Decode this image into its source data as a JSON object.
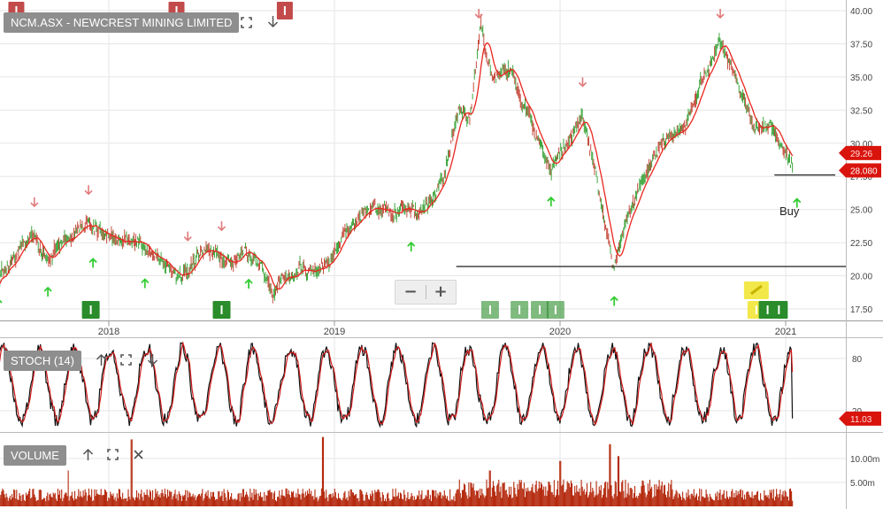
{
  "colors": {
    "candle_up": "#2a9d2a",
    "candle_down": "#c0392b",
    "ma_line": "#e8261e",
    "stoch_k": "#111111",
    "stoch_d": "#d11c1c",
    "volume_bar": "#b52a0e",
    "buy_arrow": "#33cc33",
    "sell_arrow": "#e07a7a",
    "marker_green": "#2a8c2a",
    "marker_red": "#c24a4a",
    "marker_yellow": "#f2e84a",
    "price_tag": "#d9140d",
    "grid": "#e6e6e6",
    "axis_text": "#444444"
  },
  "main_pane": {
    "title": "NCM.ASX - NEWCREST MINING LIMITED",
    "tools": {
      "fullscreen_icon": "fullscreen-icon",
      "down_icon": "arrow-down-icon"
    },
    "zoom": {
      "minus": "−",
      "plus": "+"
    },
    "buy_label": "Buy"
  },
  "stoch_pane": {
    "title": "STOCH (14)",
    "tools": {
      "up_icon": "arrow-up-icon",
      "fullscreen_icon": "fullscreen-icon",
      "down_icon": "arrow-down-icon"
    }
  },
  "volume_pane": {
    "title": "VOLUME",
    "tools": {
      "up_icon": "arrow-up-icon",
      "fullscreen_icon": "fullscreen-icon",
      "close_icon": "close-icon"
    }
  },
  "price_tags": {
    "ma": "29.26",
    "close": "28.080",
    "stoch": "11.03"
  },
  "chart_data": [
    {
      "type": "candlestick",
      "title": "NCM.ASX - NEWCREST MINING LIMITED",
      "x_tick_labels": [
        "2018",
        "2019",
        "2020",
        "2021"
      ],
      "x_ticks": [
        2018.0,
        2019.0,
        2020.0,
        2021.0
      ],
      "xlim": [
        2017.5,
        2021.3
      ],
      "ylim": [
        16.5,
        40.5
      ],
      "y_tick_labels": [
        "17.50",
        "20.00",
        "22.50",
        "25.00",
        "27.50",
        "30.00",
        "32.50",
        "35.00",
        "37.50",
        "40.00"
      ],
      "y_ticks": [
        17.5,
        20,
        22.5,
        25,
        27.5,
        30,
        32.5,
        35,
        37.5,
        40
      ],
      "grid": true,
      "price_path": [
        [
          2017.5,
          19.5
        ],
        [
          2017.66,
          23.2
        ],
        [
          2017.73,
          21.4
        ],
        [
          2017.9,
          24.0
        ],
        [
          2018.0,
          22.6
        ],
        [
          2018.08,
          23.1
        ],
        [
          2018.2,
          21.5
        ],
        [
          2018.32,
          19.8
        ],
        [
          2018.42,
          21.7
        ],
        [
          2018.52,
          21.0
        ],
        [
          2018.62,
          22.0
        ],
        [
          2018.73,
          18.8
        ],
        [
          2018.85,
          20.5
        ],
        [
          2018.98,
          20.8
        ],
        [
          2019.05,
          23.5
        ],
        [
          2019.18,
          25.3
        ],
        [
          2019.3,
          25.0
        ],
        [
          2019.38,
          24.6
        ],
        [
          2019.48,
          27.2
        ],
        [
          2019.55,
          32.5
        ],
        [
          2019.6,
          32.0
        ],
        [
          2019.65,
          38.9
        ],
        [
          2019.7,
          35.0
        ],
        [
          2019.78,
          35.5
        ],
        [
          2019.86,
          32.0
        ],
        [
          2019.96,
          28.2
        ],
        [
          2020.05,
          30.2
        ],
        [
          2020.1,
          32.0
        ],
        [
          2020.15,
          28.5
        ],
        [
          2020.22,
          22.0
        ],
        [
          2020.24,
          20.7
        ],
        [
          2020.3,
          24.5
        ],
        [
          2020.38,
          28.0
        ],
        [
          2020.45,
          30.0
        ],
        [
          2020.55,
          31.0
        ],
        [
          2020.65,
          35.5
        ],
        [
          2020.71,
          37.8
        ],
        [
          2020.78,
          35.0
        ],
        [
          2020.86,
          31.0
        ],
        [
          2020.93,
          31.5
        ],
        [
          2020.97,
          30.0
        ],
        [
          2021.0,
          29.3
        ],
        [
          2021.03,
          28.1
        ]
      ],
      "moving_average_last": 29.26,
      "last_close": 28.08,
      "horizontal_lines": [
        {
          "y": 20.7,
          "x_from": 2019.54
        },
        {
          "y": 27.6,
          "x_from": 2020.95,
          "x_to": 2021.22
        }
      ],
      "annotations": [
        {
          "text": "Buy",
          "x": 2021.03,
          "y": 25.0
        }
      ],
      "buy_signals_x": [
        2017.51,
        2017.73,
        2017.93,
        2018.16,
        2018.62,
        2019.34,
        2019.96,
        2020.24,
        2021.05
      ],
      "sell_signals_x": [
        2017.67,
        2017.91,
        2018.35,
        2018.5,
        2019.64,
        2020.1,
        2020.71
      ],
      "top_markers": [
        {
          "x": 2017.59,
          "color": "red"
        },
        {
          "x": 2018.3,
          "color": "red"
        },
        {
          "x": 2018.78,
          "color": "red"
        }
      ],
      "bottom_markers": [
        {
          "x": 2017.92,
          "color": "green"
        },
        {
          "x": 2018.5,
          "color": "green"
        },
        {
          "x": 2019.69,
          "color": "green"
        },
        {
          "x": 2019.82,
          "color": "green"
        },
        {
          "x": 2019.91,
          "color": "green"
        },
        {
          "x": 2019.98,
          "color": "green"
        },
        {
          "x": 2020.87,
          "color": "yellow"
        },
        {
          "x": 2020.92,
          "color": "green"
        },
        {
          "x": 2020.97,
          "color": "green"
        }
      ]
    },
    {
      "type": "line",
      "title": "STOCH (14)",
      "ylim": [
        0,
        100
      ],
      "y_tick_labels": [
        "20",
        "80"
      ],
      "y_ticks": [
        20,
        80
      ],
      "last_value": 11.03,
      "series": [
        {
          "name": "%K"
        },
        {
          "name": "%D"
        }
      ]
    },
    {
      "type": "bar",
      "title": "VOLUME",
      "y_tick_labels": [
        "5.00m",
        "10.00m"
      ],
      "y_ticks": [
        5,
        10
      ],
      "units": "m",
      "typical": 3.0,
      "spikes": [
        [
          2017.82,
          7.5
        ],
        [
          2018.1,
          14.0
        ],
        [
          2018.95,
          14.5
        ],
        [
          2019.69,
          7.5
        ],
        [
          2020.0,
          9.5
        ],
        [
          2020.22,
          13.0
        ],
        [
          2020.26,
          10.5
        ]
      ]
    }
  ]
}
